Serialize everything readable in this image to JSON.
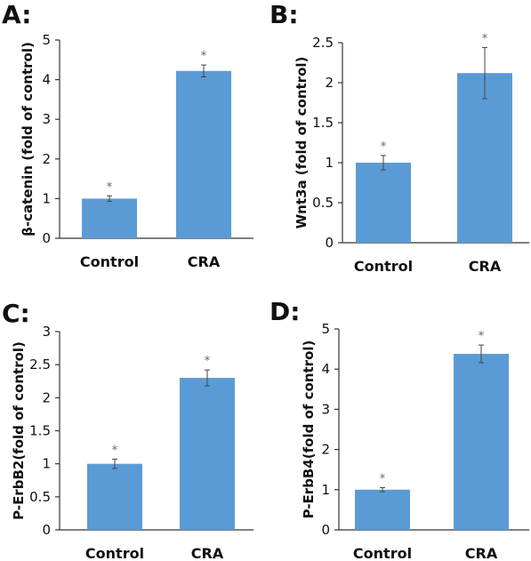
{
  "chart_data": [
    {
      "panel": "A:",
      "type": "bar",
      "categories": [
        "Control",
        "CRA"
      ],
      "values": [
        1.0,
        4.22
      ],
      "errors": [
        0.07,
        0.15
      ],
      "annotations": [
        "*",
        "*"
      ],
      "ylabel": "β-catenin (fold of control)",
      "ylim": [
        0,
        5
      ],
      "yticks": [
        "0",
        "1",
        "2",
        "3",
        "4",
        "5"
      ],
      "bar_color": "#5b9bd5"
    },
    {
      "panel": "B:",
      "type": "bar",
      "categories": [
        "Control",
        "CRA"
      ],
      "values": [
        1.0,
        2.12
      ],
      "errors": [
        0.09,
        0.32
      ],
      "annotations": [
        "*",
        "*"
      ],
      "ylabel": "Wnt3a  (fold of control)",
      "ylim": [
        0,
        2.5
      ],
      "yticks": [
        "0",
        "0.5",
        "1",
        "1.5",
        "2",
        "2.5"
      ],
      "bar_color": "#5b9bd5"
    },
    {
      "panel": "C:",
      "type": "bar",
      "categories": [
        "Control",
        "CRA"
      ],
      "values": [
        1.0,
        2.3
      ],
      "errors": [
        0.07,
        0.12
      ],
      "annotations": [
        "*",
        "*"
      ],
      "ylabel": "P-ErbB2(fold of control)",
      "ylim": [
        0,
        3
      ],
      "yticks": [
        "0",
        "0.5",
        "1",
        "1.5",
        "2",
        "2.5",
        "3"
      ],
      "bar_color": "#5b9bd5"
    },
    {
      "panel": "D:",
      "type": "bar",
      "categories": [
        "Control",
        "CRA"
      ],
      "values": [
        1.0,
        4.38
      ],
      "errors": [
        0.05,
        0.22
      ],
      "annotations": [
        "*",
        "*"
      ],
      "ylabel": "P-ErbB4(fold of control)",
      "ylim": [
        0,
        5
      ],
      "yticks": [
        "0",
        "1",
        "2",
        "3",
        "4",
        "5"
      ],
      "bar_color": "#5b9bd5"
    }
  ]
}
